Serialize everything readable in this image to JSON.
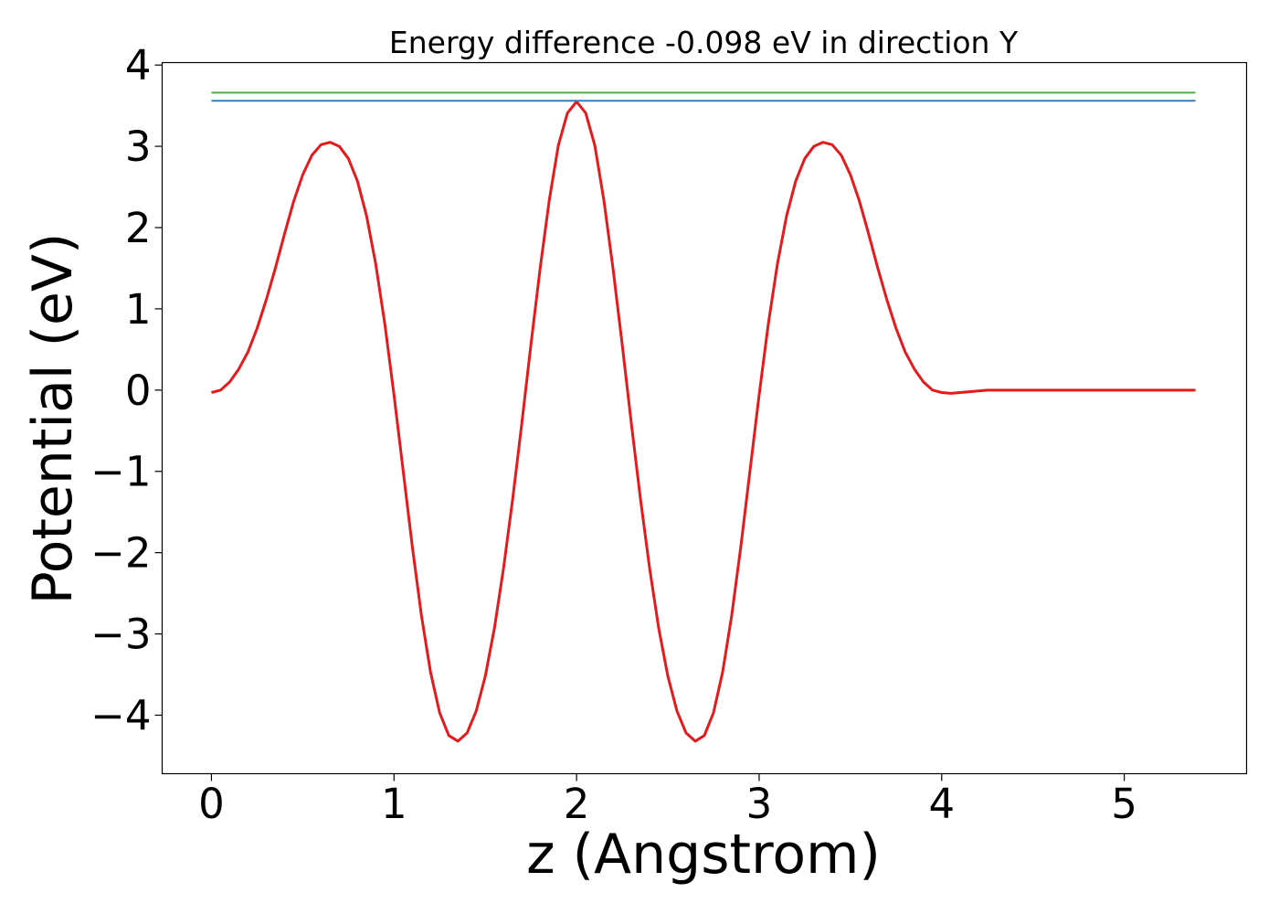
{
  "chart_data": {
    "type": "line",
    "title": "Energy difference -0.098 eV in direction Y",
    "xlabel": "z (Angstrom)",
    "ylabel": "Potential (eV)",
    "xlim": [
      -0.27,
      5.67
    ],
    "ylim": [
      -4.72,
      4.03
    ],
    "xticks": [
      0,
      1,
      2,
      3,
      4,
      5
    ],
    "xtick_labels": [
      "0",
      "1",
      "2",
      "3",
      "4",
      "5"
    ],
    "yticks": [
      4,
      3,
      2,
      1,
      0,
      -1,
      -2,
      -3,
      -4
    ],
    "ytick_labels": [
      "4",
      "3",
      "2",
      "1",
      "0",
      "−1",
      "−2",
      "−3",
      "−4"
    ],
    "grid": false,
    "legend": "none",
    "series": [
      {
        "color": "#e41a1c",
        "x": [
          0,
          0.05,
          0.1,
          0.15,
          0.2,
          0.25,
          0.3,
          0.35,
          0.4,
          0.45,
          0.5,
          0.55,
          0.6,
          0.65,
          0.7,
          0.75,
          0.8,
          0.85,
          0.9,
          0.95,
          1.0,
          1.05,
          1.1,
          1.15,
          1.2,
          1.25,
          1.3,
          1.35,
          1.4,
          1.45,
          1.5,
          1.55,
          1.6,
          1.65,
          1.7,
          1.75,
          1.8,
          1.85,
          1.9,
          1.95,
          2.0,
          2.05,
          2.1,
          2.15,
          2.2,
          2.25,
          2.3,
          2.35,
          2.4,
          2.45,
          2.5,
          2.55,
          2.6,
          2.65,
          2.7,
          2.75,
          2.8,
          2.85,
          2.9,
          2.95,
          3.0,
          3.05,
          3.1,
          3.15,
          3.2,
          3.25,
          3.3,
          3.35,
          3.4,
          3.45,
          3.5,
          3.55,
          3.6,
          3.65,
          3.7,
          3.75,
          3.8,
          3.85,
          3.9,
          3.95,
          4.0,
          4.05,
          4.1,
          4.15,
          4.2,
          4.25,
          4.3,
          4.35,
          4.4,
          4.45,
          4.5,
          4.55,
          4.6,
          4.65,
          4.7,
          4.75,
          4.8,
          4.85,
          4.9,
          4.95,
          5.0,
          5.05,
          5.1,
          5.15,
          5.2,
          5.25,
          5.3,
          5.35,
          5.39
        ],
        "y": [
          -0.03,
          0.0,
          0.1,
          0.26,
          0.47,
          0.76,
          1.11,
          1.5,
          1.92,
          2.32,
          2.65,
          2.89,
          3.02,
          3.05,
          3.0,
          2.85,
          2.57,
          2.14,
          1.55,
          0.81,
          -0.06,
          -0.99,
          -1.92,
          -2.77,
          -3.47,
          -3.97,
          -4.25,
          -4.32,
          -4.22,
          -3.95,
          -3.52,
          -2.93,
          -2.19,
          -1.34,
          -0.41,
          0.56,
          1.49,
          2.33,
          3.01,
          3.41,
          3.55,
          3.41,
          3.01,
          2.33,
          1.49,
          0.56,
          -0.41,
          -1.34,
          -2.19,
          -2.93,
          -3.52,
          -3.95,
          -4.22,
          -4.32,
          -4.25,
          -3.97,
          -3.47,
          -2.77,
          -1.92,
          -0.99,
          -0.06,
          0.81,
          1.55,
          2.14,
          2.57,
          2.85,
          3.0,
          3.05,
          3.02,
          2.89,
          2.65,
          2.32,
          1.92,
          1.5,
          1.11,
          0.76,
          0.47,
          0.26,
          0.1,
          0.0,
          -0.03,
          -0.04,
          -0.03,
          -0.02,
          -0.01,
          0.0,
          0.0,
          0.0,
          0.0,
          0.0,
          0.0,
          0.0,
          0.0,
          0.0,
          0.0,
          0.0,
          0.0,
          0.0,
          0.0,
          0.0,
          0.0,
          0.0,
          0.0,
          0.0,
          0.0,
          0.0,
          0.0,
          0.0,
          0.0
        ]
      },
      {
        "color": "#377eb8",
        "x": [
          0,
          5.39
        ],
        "y": [
          3.56,
          3.56
        ]
      },
      {
        "color": "#4daf4a",
        "x": [
          0,
          5.39
        ],
        "y": [
          3.66,
          3.66
        ]
      }
    ]
  }
}
